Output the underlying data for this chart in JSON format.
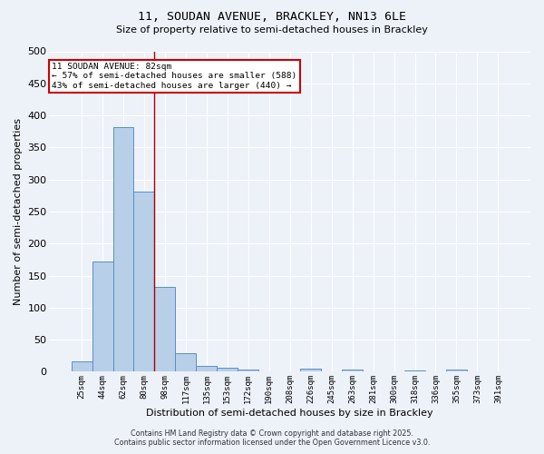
{
  "title_line1": "11, SOUDAN AVENUE, BRACKLEY, NN13 6LE",
  "title_line2": "Size of property relative to semi-detached houses in Brackley",
  "xlabel": "Distribution of semi-detached houses by size in Brackley",
  "ylabel": "Number of semi-detached properties",
  "footer_line1": "Contains HM Land Registry data © Crown copyright and database right 2025.",
  "footer_line2": "Contains public sector information licensed under the Open Government Licence v3.0.",
  "categories": [
    "25sqm",
    "44sqm",
    "62sqm",
    "80sqm",
    "98sqm",
    "117sqm",
    "135sqm",
    "153sqm",
    "172sqm",
    "190sqm",
    "208sqm",
    "226sqm",
    "245sqm",
    "263sqm",
    "281sqm",
    "300sqm",
    "318sqm",
    "336sqm",
    "355sqm",
    "373sqm",
    "391sqm"
  ],
  "values": [
    16,
    172,
    382,
    281,
    132,
    29,
    9,
    6,
    4,
    0,
    0,
    5,
    0,
    3,
    0,
    0,
    2,
    0,
    3,
    0,
    0
  ],
  "bar_color": "#b8cfe8",
  "bar_edge_color": "#5b8dc8",
  "bg_color": "#edf2f9",
  "grid_color": "#ffffff",
  "annotation_box_text": "11 SOUDAN AVENUE: 82sqm\n← 57% of semi-detached houses are smaller (588)\n43% of semi-detached houses are larger (440) →",
  "annotation_box_color": "#ffffff",
  "annotation_box_edge_color": "#cc0000",
  "marker_line_color": "#aa0000",
  "marker_bin_index": 3,
  "ylim": [
    0,
    500
  ],
  "yticks": [
    0,
    50,
    100,
    150,
    200,
    250,
    300,
    350,
    400,
    450,
    500
  ]
}
